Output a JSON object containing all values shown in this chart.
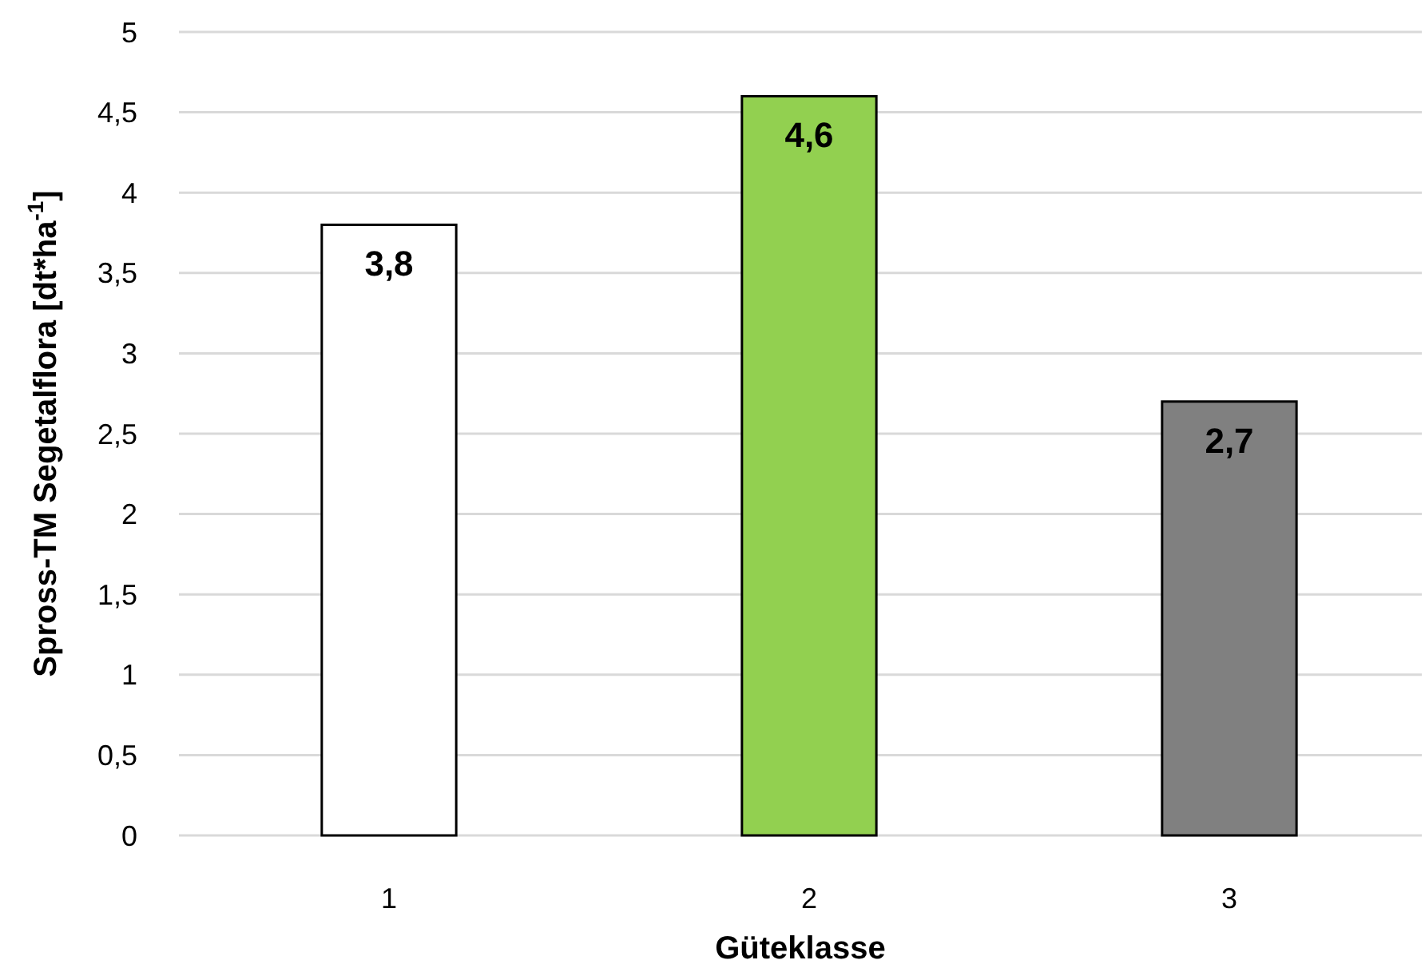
{
  "chart_data": {
    "type": "bar",
    "xlabel": "Güteklasse",
    "ylabel": "Spross-TM Segetalflora [dt*ha$^{-1}$]",
    "categories": [
      "1",
      "2",
      "3"
    ],
    "values": [
      3.8,
      4.6,
      2.7
    ],
    "colors": [
      "#ffffff",
      "#92d050",
      "#808080"
    ],
    "value_labels": [
      "3,8",
      "4,6",
      "2,7"
    ],
    "ylim": [
      0,
      5
    ],
    "yticks": [
      0,
      {
        "value": 0.5,
        "label": "0,5"
      },
      1,
      {
        "value": 1.5,
        "label": "1,5"
      },
      2,
      {
        "value": 2.5,
        "label": "2,5"
      },
      3,
      {
        "value": 3.5,
        "label": "3,5"
      },
      4,
      {
        "value": 4.5,
        "label": "4,5"
      },
      5
    ],
    "grid": "y"
  }
}
